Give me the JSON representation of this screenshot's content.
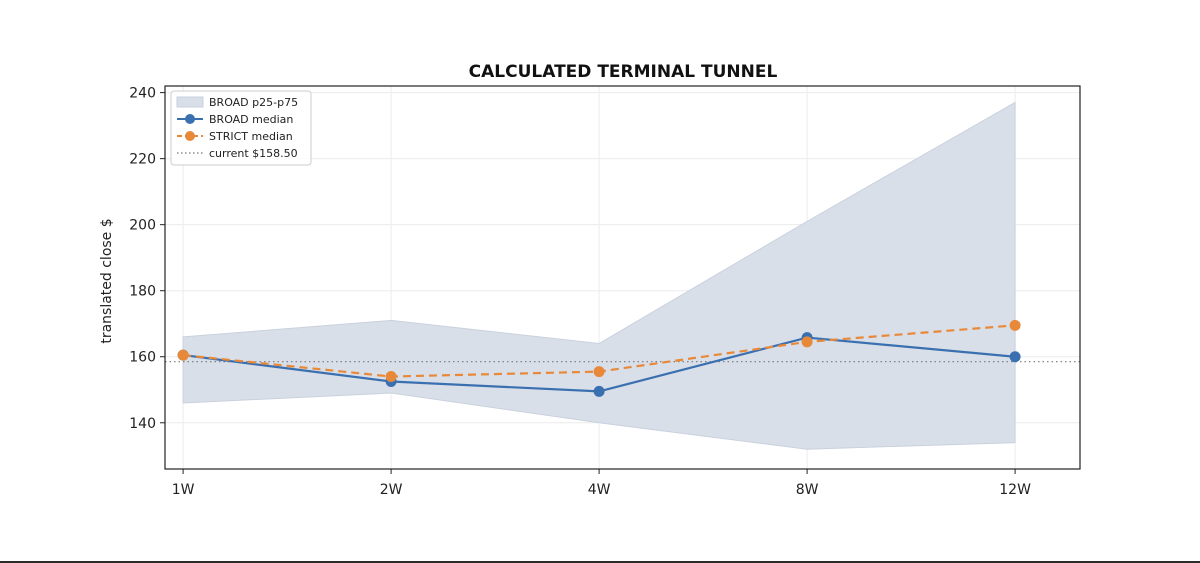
{
  "chart_data": {
    "type": "line",
    "title": "CALCULATED TERMINAL TUNNEL",
    "xlabel": "",
    "ylabel": "translated close $",
    "categories": [
      "1W",
      "2W",
      "4W",
      "8W",
      "12W"
    ],
    "ylim": [
      126,
      242
    ],
    "yticks": [
      140,
      160,
      180,
      200,
      220,
      240
    ],
    "grid": true,
    "legend_position": "top-left",
    "band": {
      "name": "BROAD p25-p75",
      "lower": [
        146,
        149,
        140,
        132,
        134
      ],
      "upper": [
        166,
        171,
        164,
        201,
        237
      ],
      "color": "#d9dfe8"
    },
    "series": [
      {
        "name": "BROAD median",
        "values": [
          160.5,
          152.5,
          149.5,
          165.8,
          160
        ],
        "color": "#3a70b0",
        "style": "solid"
      },
      {
        "name": "STRICT median",
        "values": [
          160.5,
          154,
          155.5,
          164.5,
          169.5
        ],
        "color": "#e8893a",
        "style": "dashed"
      }
    ],
    "reference_line": {
      "name": "current $158.50",
      "value": 158.5,
      "color": "#777777",
      "style": "dotted"
    }
  }
}
